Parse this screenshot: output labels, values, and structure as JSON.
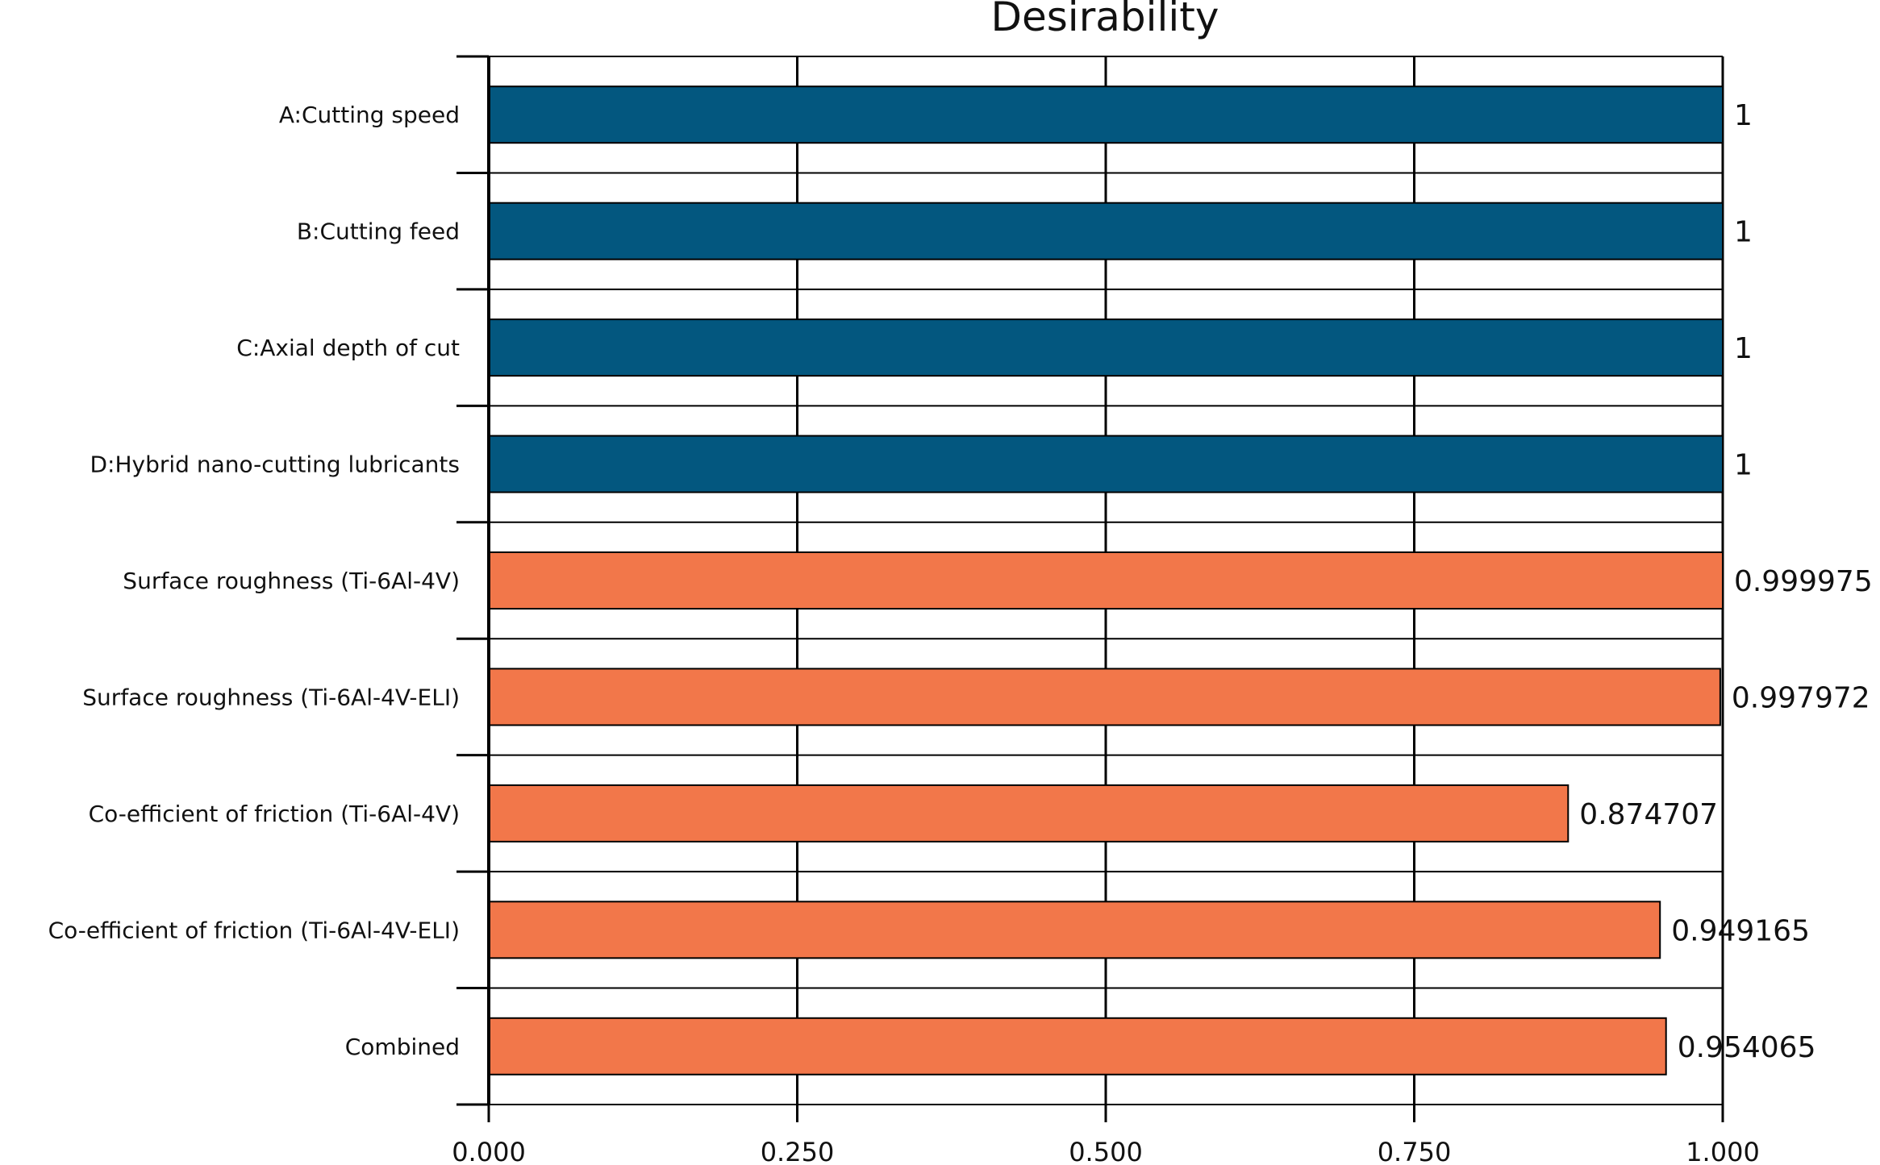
{
  "chart_data": {
    "type": "bar",
    "orientation": "horizontal",
    "title": "Desirability",
    "xlabel": "",
    "ylabel": "",
    "xlim": [
      0,
      1
    ],
    "x_ticks": [
      "0.000",
      "0.250",
      "0.500",
      "0.750",
      "1.000"
    ],
    "x_tick_values": [
      0,
      0.25,
      0.5,
      0.75,
      1.0
    ],
    "grid": true,
    "legend": null,
    "categories": [
      "A:Cutting speed",
      "B:Cutting feed",
      "C:Axial depth of cut",
      "D:Hybrid nano-cutting lubricants",
      "Surface roughness (Ti-6Al-4V)",
      "Surface roughness (Ti-6Al-4V-ELI)",
      "Co-efficient of friction (Ti-6Al-4V)",
      "Co-efficient of friction (Ti-6Al-4V-ELI)",
      "Combined"
    ],
    "values": [
      1,
      1,
      1,
      1,
      0.999975,
      0.997972,
      0.874707,
      0.949165,
      0.954065
    ],
    "value_labels": [
      "1",
      "1",
      "1",
      "1",
      "0.999975",
      "0.997972",
      "0.874707",
      "0.949165",
      "0.954065"
    ],
    "bar_colors": [
      "#03577f",
      "#03577f",
      "#03577f",
      "#03577f",
      "#f2774a",
      "#f2774a",
      "#f2774a",
      "#f2774a",
      "#f2774a"
    ]
  }
}
